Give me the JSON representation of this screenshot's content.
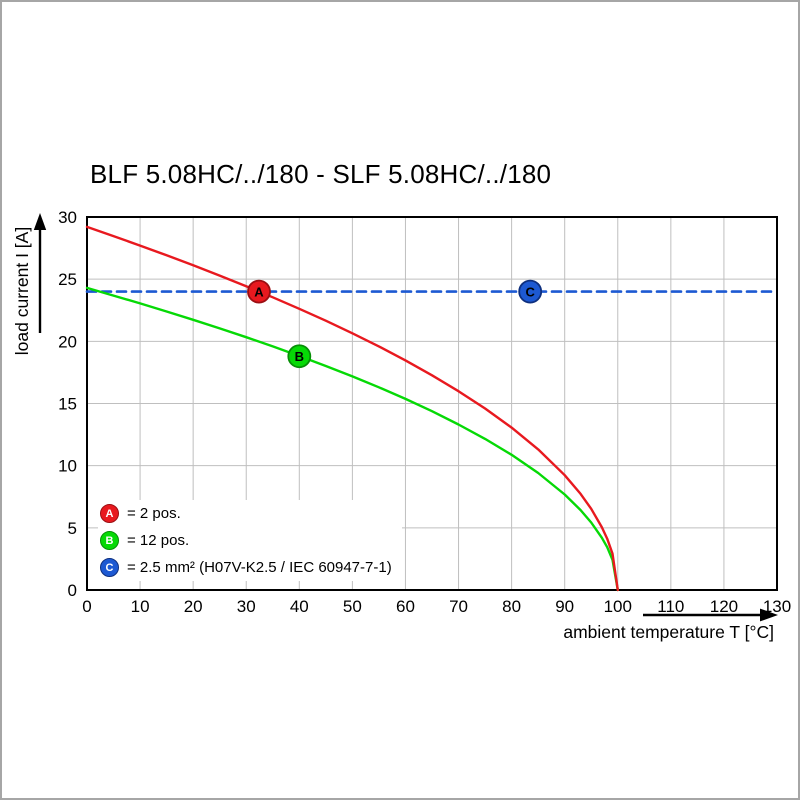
{
  "chart_data": {
    "type": "line",
    "title": "BLF 5.08HC/../180 - SLF 5.08HC/../180",
    "xlabel": "ambient temperature T [°C]",
    "ylabel": "load current I [A]",
    "xlim": [
      0,
      130
    ],
    "ylim": [
      0,
      30
    ],
    "x_ticks": [
      0,
      10,
      20,
      30,
      40,
      50,
      60,
      70,
      80,
      90,
      100,
      110,
      120,
      130
    ],
    "y_ticks": [
      0,
      5,
      10,
      15,
      20,
      25,
      30
    ],
    "grid": true,
    "legend_position": "inside-bottom-left",
    "colors": {
      "grid": "#bfbfbf",
      "axis": "#000000",
      "frame": "#a6a6a6",
      "background": "#ffffff"
    },
    "series": [
      {
        "name": "A",
        "legend_label": "= 2 pos.",
        "color": "#e8191f",
        "marker_border": "#9b0f13",
        "line_style": "solid",
        "x": [
          0,
          5,
          10,
          15,
          20,
          25,
          30,
          35,
          40,
          45,
          50,
          55,
          60,
          65,
          70,
          75,
          80,
          85,
          90,
          93,
          95,
          97,
          98,
          99,
          100
        ],
        "y": [
          29.2,
          28.46,
          27.7,
          26.92,
          26.12,
          25.29,
          24.43,
          23.54,
          22.62,
          21.66,
          20.65,
          19.59,
          18.47,
          17.27,
          15.99,
          14.6,
          13.06,
          11.31,
          9.23,
          7.73,
          6.53,
          5.06,
          4.13,
          2.92,
          0
        ],
        "marker": {
          "letter": "A",
          "x": 32.4,
          "y": 24.0
        }
      },
      {
        "name": "B",
        "legend_label": "= 12 pos.",
        "color": "#06d906",
        "marker_border": "#068f06",
        "line_style": "solid",
        "x": [
          0,
          5,
          10,
          15,
          20,
          25,
          30,
          35,
          40,
          45,
          50,
          55,
          60,
          65,
          70,
          75,
          80,
          85,
          90,
          93,
          95,
          97,
          98,
          99,
          100
        ],
        "y": [
          24.3,
          23.68,
          23.05,
          22.4,
          21.73,
          21.04,
          20.33,
          19.59,
          18.82,
          18.02,
          17.18,
          16.3,
          15.37,
          14.38,
          13.31,
          12.15,
          10.87,
          9.41,
          7.68,
          6.43,
          5.43,
          4.21,
          3.44,
          2.43,
          0
        ],
        "marker": {
          "letter": "B",
          "x": 40,
          "y": 18.8
        }
      },
      {
        "name": "C",
        "legend_label": "= 2.5 mm² (H07V-K2.5 / IEC 60947-7-1)",
        "color": "#1d59d2",
        "marker_border": "#0e2f7e",
        "line_style": "dashed",
        "x": [
          0,
          130
        ],
        "y": [
          24,
          24
        ],
        "marker": {
          "letter": "C",
          "x": 83.5,
          "y": 24.0
        }
      }
    ]
  }
}
